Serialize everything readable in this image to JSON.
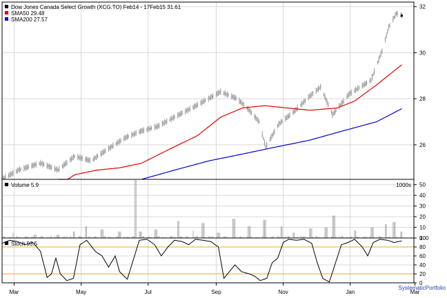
{
  "chart_data": [
    {
      "type": "line",
      "title": "Dow Jones Canada Select Growth (XCG.TO) Feb14 - 17Feb15 31.61",
      "price_style": "ohlc-bars",
      "ylim": [
        24.5,
        32.2
      ],
      "yticks": [
        26,
        28,
        30,
        32
      ],
      "grid": true,
      "legend_position": "top-left",
      "price_path": [
        [
          "2014-02-18",
          24.5
        ],
        [
          "2014-03-05",
          24.9
        ],
        [
          "2014-03-25",
          25.2
        ],
        [
          "2014-04-10",
          24.9
        ],
        [
          "2014-04-25",
          25.5
        ],
        [
          "2014-05-10",
          25.3
        ],
        [
          "2014-05-25",
          25.8
        ],
        [
          "2014-06-10",
          26.3
        ],
        [
          "2014-06-25",
          26.6
        ],
        [
          "2014-07-10",
          26.8
        ],
        [
          "2014-07-25",
          27.2
        ],
        [
          "2014-08-10",
          27.6
        ],
        [
          "2014-08-25",
          28.0
        ],
        [
          "2014-09-05",
          28.3
        ],
        [
          "2014-09-20",
          28.0
        ],
        [
          "2014-10-01",
          27.5
        ],
        [
          "2014-10-10",
          27.0
        ],
        [
          "2014-10-16",
          25.9
        ],
        [
          "2014-10-28",
          26.9
        ],
        [
          "2014-11-10",
          27.4
        ],
        [
          "2014-11-25",
          28.1
        ],
        [
          "2014-12-05",
          28.5
        ],
        [
          "2014-12-16",
          27.3
        ],
        [
          "2014-12-31",
          28.2
        ],
        [
          "2015-01-10",
          28.5
        ],
        [
          "2015-01-20",
          28.8
        ],
        [
          "2015-01-31",
          30.2
        ],
        [
          "2015-02-05",
          31.1
        ],
        [
          "2015-02-12",
          31.7
        ],
        [
          "2015-02-17",
          31.61
        ]
      ],
      "series": [
        {
          "name": "SMA50 29.48",
          "color": "#dd0000",
          "values": [
            [
              "2014-04-10",
              24.2
            ],
            [
              "2014-04-25",
              24.7
            ],
            [
              "2014-05-15",
              24.9
            ],
            [
              "2014-06-05",
              25.0
            ],
            [
              "2014-06-25",
              25.2
            ],
            [
              "2014-07-20",
              25.8
            ],
            [
              "2014-08-15",
              26.4
            ],
            [
              "2014-09-05",
              27.2
            ],
            [
              "2014-09-25",
              27.6
            ],
            [
              "2014-10-15",
              27.7
            ],
            [
              "2014-11-05",
              27.6
            ],
            [
              "2014-11-25",
              27.5
            ],
            [
              "2014-12-20",
              27.6
            ],
            [
              "2015-01-05",
              27.9
            ],
            [
              "2015-01-25",
              28.6
            ],
            [
              "2015-02-17",
              29.48
            ]
          ]
        },
        {
          "name": "SMA200 27.57",
          "color": "#0000cc",
          "values": [
            [
              "2014-06-25",
              24.5
            ],
            [
              "2014-07-25",
              24.9
            ],
            [
              "2014-08-25",
              25.3
            ],
            [
              "2014-09-25",
              25.6
            ],
            [
              "2014-10-25",
              25.9
            ],
            [
              "2014-11-25",
              26.2
            ],
            [
              "2014-12-25",
              26.6
            ],
            [
              "2015-01-25",
              27.0
            ],
            [
              "2015-02-17",
              27.57
            ]
          ]
        }
      ]
    },
    {
      "type": "bar",
      "title": "Volume 5.9",
      "units": "1000s",
      "ylim": [
        0,
        55
      ],
      "yticks": [
        0,
        10,
        20,
        30,
        40,
        50
      ],
      "volume": [
        [
          "2014-02-18",
          1
        ],
        [
          "2014-03-01",
          5
        ],
        [
          "2014-03-20",
          3
        ],
        [
          "2014-04-10",
          3
        ],
        [
          "2014-04-25",
          6
        ],
        [
          "2014-05-05",
          11
        ],
        [
          "2014-05-20",
          8
        ],
        [
          "2014-06-05",
          6
        ],
        [
          "2014-06-20",
          55
        ],
        [
          "2014-06-24",
          6
        ],
        [
          "2014-07-08",
          8
        ],
        [
          "2014-07-28",
          16
        ],
        [
          "2014-08-10",
          7
        ],
        [
          "2014-08-20",
          14
        ],
        [
          "2014-09-03",
          5
        ],
        [
          "2014-09-17",
          18
        ],
        [
          "2014-10-01",
          11
        ],
        [
          "2014-10-15",
          17
        ],
        [
          "2014-10-31",
          11
        ],
        [
          "2014-11-10",
          5
        ],
        [
          "2014-11-26",
          9
        ],
        [
          "2014-12-10",
          10
        ],
        [
          "2014-12-17",
          21
        ],
        [
          "2015-01-05",
          7
        ],
        [
          "2015-01-21",
          10
        ],
        [
          "2015-02-02",
          13
        ],
        [
          "2015-02-10",
          15
        ],
        [
          "2015-02-17",
          6
        ]
      ]
    },
    {
      "type": "line",
      "title": "Stoch 93.5",
      "ylim": [
        0,
        100
      ],
      "yticks": [
        0,
        20,
        40,
        60,
        80,
        100
      ],
      "reference_lines": [
        20,
        80
      ],
      "reference_color": "#f5a623",
      "line_color": "#000000",
      "stoch": [
        [
          "2014-02-18",
          88
        ],
        [
          "2014-02-25",
          95
        ],
        [
          "2014-03-04",
          92
        ],
        [
          "2014-03-11",
          85
        ],
        [
          "2014-03-18",
          90
        ],
        [
          "2014-03-25",
          70
        ],
        [
          "2014-03-31",
          12
        ],
        [
          "2014-04-04",
          20
        ],
        [
          "2014-04-08",
          55
        ],
        [
          "2014-04-12",
          20
        ],
        [
          "2014-04-18",
          5
        ],
        [
          "2014-04-24",
          10
        ],
        [
          "2014-04-30",
          85
        ],
        [
          "2014-05-06",
          95
        ],
        [
          "2014-05-14",
          70
        ],
        [
          "2014-05-20",
          60
        ],
        [
          "2014-05-26",
          35
        ],
        [
          "2014-06-01",
          60
        ],
        [
          "2014-06-05",
          25
        ],
        [
          "2014-06-12",
          8
        ],
        [
          "2014-06-18",
          55
        ],
        [
          "2014-06-23",
          95
        ],
        [
          "2014-06-30",
          97
        ],
        [
          "2014-07-07",
          85
        ],
        [
          "2014-07-13",
          60
        ],
        [
          "2014-07-19",
          80
        ],
        [
          "2014-07-25",
          95
        ],
        [
          "2014-08-01",
          92
        ],
        [
          "2014-08-07",
          85
        ],
        [
          "2014-08-13",
          97
        ],
        [
          "2014-08-20",
          95
        ],
        [
          "2014-08-27",
          92
        ],
        [
          "2014-09-03",
          80
        ],
        [
          "2014-09-08",
          10
        ],
        [
          "2014-09-13",
          25
        ],
        [
          "2014-09-18",
          40
        ],
        [
          "2014-09-24",
          25
        ],
        [
          "2014-10-01",
          20
        ],
        [
          "2014-10-06",
          15
        ],
        [
          "2014-10-11",
          5
        ],
        [
          "2014-10-17",
          10
        ],
        [
          "2014-10-22",
          45
        ],
        [
          "2014-10-27",
          55
        ],
        [
          "2014-11-01",
          90
        ],
        [
          "2014-11-06",
          97
        ],
        [
          "2014-11-13",
          95
        ],
        [
          "2014-11-20",
          97
        ],
        [
          "2014-11-27",
          88
        ],
        [
          "2014-12-02",
          45
        ],
        [
          "2014-12-07",
          10
        ],
        [
          "2014-12-13",
          2
        ],
        [
          "2014-12-18",
          40
        ],
        [
          "2014-12-24",
          85
        ],
        [
          "2014-12-30",
          90
        ],
        [
          "2015-01-05",
          97
        ],
        [
          "2015-01-12",
          80
        ],
        [
          "2015-01-17",
          60
        ],
        [
          "2015-01-22",
          90
        ],
        [
          "2015-01-28",
          97
        ],
        [
          "2015-02-04",
          95
        ],
        [
          "2015-02-10",
          90
        ],
        [
          "2015-02-17",
          93.5
        ]
      ]
    }
  ],
  "x_axis": {
    "start": "2014-02-18",
    "end": "2015-02-28",
    "ticks": [
      {
        "date": "2014-03-01",
        "label": "Mar"
      },
      {
        "date": "2014-05-01",
        "label": "May"
      },
      {
        "date": "2014-07-01",
        "label": "Jul"
      },
      {
        "date": "2014-09-01",
        "label": "Sep"
      },
      {
        "date": "2014-11-01",
        "label": "Nov"
      },
      {
        "date": "2015-01-01",
        "label": "Jan"
      },
      {
        "date": "2015-03-01",
        "label": "Mar"
      }
    ]
  },
  "watermark": "SystematicPortfolio"
}
